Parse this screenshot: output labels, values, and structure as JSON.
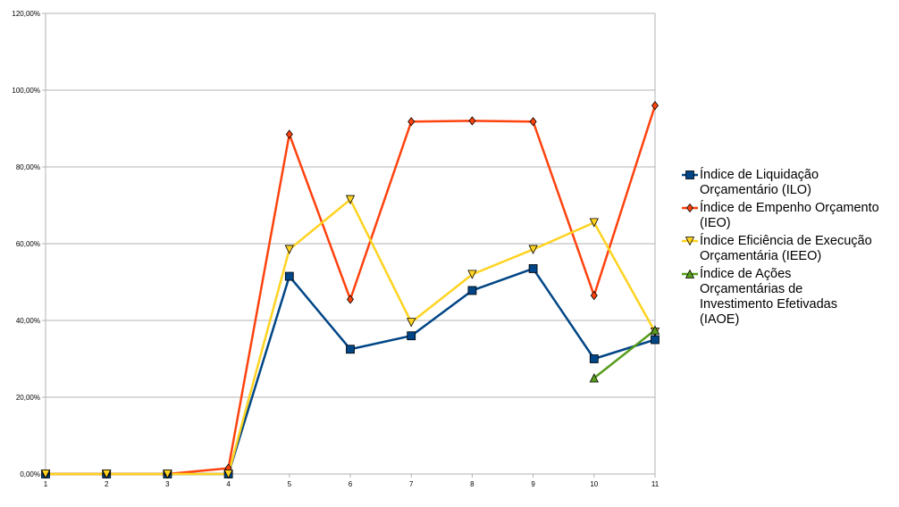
{
  "chart_data": {
    "type": "line",
    "x": [
      1,
      2,
      3,
      4,
      5,
      6,
      7,
      8,
      9,
      10,
      11
    ],
    "ylim": [
      0,
      1.2
    ],
    "y_ticks": [
      "0,00%",
      "20,00%",
      "40,00%",
      "60,00%",
      "80,00%",
      "100,00%",
      "120,00%"
    ],
    "x_ticks": [
      "1",
      "2",
      "3",
      "4",
      "5",
      "6",
      "7",
      "8",
      "9",
      "10",
      "11"
    ],
    "grid": true,
    "legend_position": "right",
    "series": [
      {
        "name": "Índice de Liquidação\nOrçamentário (ILO)",
        "color": "#004586",
        "marker": "square",
        "values": [
          0,
          0,
          0,
          0,
          0.515,
          0.325,
          0.36,
          0.478,
          0.535,
          0.3,
          0.35
        ]
      },
      {
        "name": "Índice de Empenho Orçamento\n(IEO)",
        "color": "#ff420e",
        "marker": "diamond",
        "values": [
          0,
          0,
          0,
          0.015,
          0.885,
          0.455,
          0.918,
          0.92,
          0.918,
          0.465,
          0.96
        ]
      },
      {
        "name": "Índice Eficiência de Execução\nOrçamentária (IEEO)",
        "color": "#ffd320",
        "marker": "triangle-down",
        "values": [
          0,
          0,
          0,
          0,
          0.585,
          0.715,
          0.395,
          0.52,
          0.585,
          0.655,
          0.37
        ]
      },
      {
        "name": "Índice de Ações\nOrçamentárias de\nInvestimento Efetivadas\n(IAOE)",
        "color": "#579d1c",
        "marker": "triangle-up",
        "values": [
          null,
          null,
          null,
          null,
          null,
          null,
          null,
          null,
          null,
          0.25,
          0.375
        ]
      }
    ]
  }
}
